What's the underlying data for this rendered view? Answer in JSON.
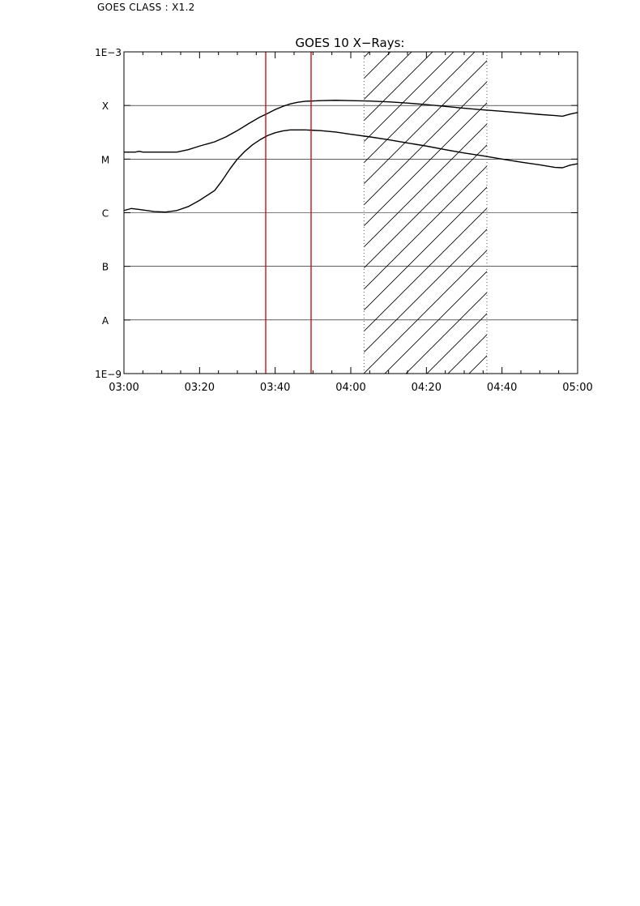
{
  "header": {
    "text": "GOES CLASS : X1.2"
  },
  "chart_data": {
    "type": "line",
    "title": "GOES 10 X−Rays:",
    "xlabel": "",
    "ylabel": "",
    "scale_y": "log",
    "xlim": [
      "03:00",
      "05:00"
    ],
    "ylim": [
      1e-09,
      0.001
    ],
    "x_ticks": [
      "03:00",
      "03:20",
      "03:40",
      "04:00",
      "04:20",
      "04:40",
      "05:00"
    ],
    "y_tick_labels": [
      {
        "label": "1E−3",
        "value": 0.001
      },
      {
        "label": "X",
        "value": 0.0001
      },
      {
        "label": "M",
        "value": 1e-05
      },
      {
        "label": "C",
        "value": 1e-06
      },
      {
        "label": "B",
        "value": 1e-07
      },
      {
        "label": "A",
        "value": 1e-08
      },
      {
        "label": "1E−9",
        "value": 1e-09
      }
    ],
    "horizontal_lines_at": [
      0.0001,
      1e-05,
      1e-06,
      1e-07,
      1e-08
    ],
    "vertical_markers": [
      {
        "x": "03:37.5",
        "color": "#cc0000"
      },
      {
        "x": "03:49.5",
        "color": "#cc0000"
      }
    ],
    "shaded_interval": {
      "x_start": "04:03.5",
      "x_end": "04:36",
      "pattern": "diagonal hatch",
      "edge_style": "dotted"
    },
    "series": [
      {
        "x": [
          0,
          3,
          4,
          5,
          7,
          14,
          17,
          20,
          24,
          27,
          30,
          33,
          36,
          38,
          40,
          42,
          44,
          46,
          48,
          52,
          56,
          60,
          65,
          70,
          75,
          80,
          85,
          90,
          95,
          100,
          105,
          110,
          114,
          116,
          118,
          120
        ],
        "y": [
          1.35e-05,
          1.35e-05,
          1.4e-05,
          1.35e-05,
          1.35e-05,
          1.35e-05,
          1.5e-05,
          1.75e-05,
          2.1e-05,
          2.6e-05,
          3.4e-05,
          4.6e-05,
          6.1e-05,
          7.1e-05,
          8.4e-05,
          9.6e-05,
          0.000107,
          0.000115,
          0.00012,
          0.000123,
          0.000125,
          0.000123,
          0.000121,
          0.000117,
          0.000111,
          0.000104,
          9.6e-05,
          8.9e-05,
          8.3e-05,
          7.8e-05,
          7.3e-05,
          6.8e-05,
          6.5e-05,
          6.3e-05,
          6.9e-05,
          7.4e-05
        ]
      },
      {
        "x": [
          0,
          2,
          4,
          8,
          11,
          14,
          17,
          20,
          24,
          26,
          28,
          30,
          32,
          34,
          36,
          38,
          40,
          42,
          44,
          46,
          48,
          50,
          52,
          56,
          60,
          65,
          70,
          75,
          80,
          85,
          90,
          95,
          100,
          105,
          110,
          114,
          116,
          118,
          120
        ],
        "y": [
          1.1e-06,
          1.2e-06,
          1.15e-06,
          1.05e-06,
          1.03e-06,
          1.1e-06,
          1.3e-06,
          1.7e-06,
          2.6e-06,
          4e-06,
          6.5e-06,
          1e-05,
          1.4e-05,
          1.85e-05,
          2.3e-05,
          2.75e-05,
          3.1e-05,
          3.35e-05,
          3.5e-05,
          3.5e-05,
          3.5e-05,
          3.45e-05,
          3.4e-05,
          3.2e-05,
          2.9e-05,
          2.6e-05,
          2.3e-05,
          2e-05,
          1.75e-05,
          1.5e-05,
          1.3e-05,
          1.15e-05,
          1e-05,
          8.8e-06,
          7.8e-06,
          7e-06,
          6.9e-06,
          7.7e-06,
          8.2e-06
        ]
      }
    ]
  }
}
